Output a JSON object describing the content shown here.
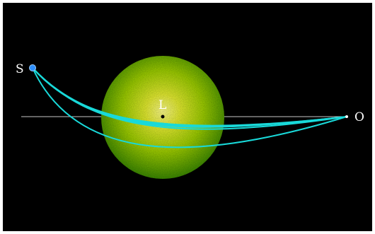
{
  "labels": {
    "source": "S",
    "lens": "L",
    "observer": "O"
  },
  "colors": {
    "background": "#000000",
    "frame_border": "#ffffff",
    "lens_center": "#ffff80",
    "lens_mid": "#b7d800",
    "lens_edge": "#3f8d00",
    "ray": "#19d9d9",
    "optical_axis": "#c8c8c8",
    "source_dot": "#2e8fff",
    "observer_dot": "#ffffff",
    "lens_center_dot": "#000000"
  }
}
